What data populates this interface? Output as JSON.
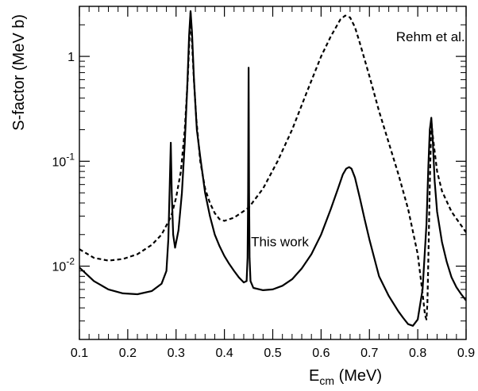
{
  "chart_data": {
    "type": "line",
    "xlabel": "E",
    "xlabel_sub": "cm",
    "xlabel_unit": " (MeV)",
    "ylabel": "S-factor (MeV b)",
    "xlim": [
      0.1,
      0.9
    ],
    "ylim": [
      0.002,
      3.0
    ],
    "yscale": "log",
    "grid": false,
    "x_ticks": [
      {
        "value": 0.1,
        "label": "0.1"
      },
      {
        "value": 0.2,
        "label": "0.2"
      },
      {
        "value": 0.3,
        "label": "0.3"
      },
      {
        "value": 0.4,
        "label": "0.4"
      },
      {
        "value": 0.5,
        "label": "0.5"
      },
      {
        "value": 0.6,
        "label": "0.6"
      },
      {
        "value": 0.7,
        "label": "0.7"
      },
      {
        "value": 0.8,
        "label": "0.8"
      },
      {
        "value": 0.9,
        "label": "0.9"
      }
    ],
    "y_ticks": [
      {
        "value": 0.01,
        "base": "10",
        "exp": "-2"
      },
      {
        "value": 0.1,
        "base": "10",
        "exp": "-1"
      },
      {
        "value": 1,
        "base": "1",
        "exp": ""
      }
    ],
    "annotations": [
      {
        "text": "Rehm et al.",
        "x": 0.755,
        "y": 1.4
      },
      {
        "text": "This work",
        "x": 0.455,
        "y": 0.0155
      }
    ],
    "series": [
      {
        "style": "solid",
        "x": [
          0.1,
          0.13,
          0.16,
          0.19,
          0.22,
          0.25,
          0.27,
          0.28,
          0.284,
          0.287,
          0.289,
          0.291,
          0.294,
          0.298,
          0.305,
          0.312,
          0.318,
          0.323,
          0.327,
          0.33,
          0.333,
          0.337,
          0.343,
          0.35,
          0.36,
          0.37,
          0.38,
          0.39,
          0.4,
          0.41,
          0.42,
          0.43,
          0.44,
          0.446,
          0.448,
          0.449,
          0.45,
          0.451,
          0.452,
          0.454,
          0.46,
          0.48,
          0.5,
          0.52,
          0.54,
          0.56,
          0.58,
          0.6,
          0.62,
          0.635,
          0.645,
          0.652,
          0.658,
          0.663,
          0.67,
          0.68,
          0.69,
          0.7,
          0.71,
          0.72,
          0.74,
          0.76,
          0.77,
          0.78,
          0.79,
          0.8,
          0.81,
          0.818,
          0.822,
          0.825,
          0.828,
          0.831,
          0.835,
          0.84,
          0.85,
          0.86,
          0.87,
          0.88,
          0.89,
          0.9
        ],
        "y": [
          0.0097,
          0.0072,
          0.006,
          0.0055,
          0.0054,
          0.0058,
          0.0068,
          0.009,
          0.018,
          0.06,
          0.15,
          0.05,
          0.02,
          0.015,
          0.022,
          0.05,
          0.15,
          0.5,
          1.6,
          2.7,
          1.7,
          0.6,
          0.2,
          0.11,
          0.05,
          0.03,
          0.02,
          0.0155,
          0.0125,
          0.0105,
          0.009,
          0.0078,
          0.007,
          0.0072,
          0.012,
          0.05,
          0.78,
          0.05,
          0.012,
          0.0072,
          0.0062,
          0.0059,
          0.006,
          0.0065,
          0.0075,
          0.0095,
          0.013,
          0.02,
          0.035,
          0.055,
          0.075,
          0.085,
          0.088,
          0.085,
          0.07,
          0.045,
          0.028,
          0.018,
          0.012,
          0.008,
          0.0052,
          0.0037,
          0.0032,
          0.0028,
          0.0027,
          0.0031,
          0.006,
          0.025,
          0.09,
          0.2,
          0.26,
          0.16,
          0.065,
          0.033,
          0.017,
          0.011,
          0.0078,
          0.0063,
          0.0054,
          0.0047
        ]
      },
      {
        "name": "Rehm et al.",
        "style": "dashed",
        "x": [
          0.1,
          0.13,
          0.16,
          0.19,
          0.22,
          0.25,
          0.27,
          0.29,
          0.3,
          0.31,
          0.318,
          0.324,
          0.33,
          0.336,
          0.342,
          0.35,
          0.36,
          0.37,
          0.38,
          0.39,
          0.4,
          0.42,
          0.45,
          0.48,
          0.51,
          0.54,
          0.57,
          0.6,
          0.62,
          0.64,
          0.65,
          0.66,
          0.67,
          0.68,
          0.7,
          0.72,
          0.74,
          0.76,
          0.78,
          0.8,
          0.81,
          0.815,
          0.818,
          0.82,
          0.822,
          0.825,
          0.828,
          0.832,
          0.84,
          0.85,
          0.87,
          0.9
        ],
        "y": [
          0.0145,
          0.012,
          0.0113,
          0.0117,
          0.013,
          0.016,
          0.02,
          0.03,
          0.045,
          0.08,
          0.2,
          0.6,
          2.6,
          0.7,
          0.25,
          0.1,
          0.055,
          0.04,
          0.032,
          0.028,
          0.027,
          0.029,
          0.036,
          0.055,
          0.1,
          0.2,
          0.45,
          1.0,
          1.55,
          2.25,
          2.45,
          2.35,
          1.9,
          1.35,
          0.65,
          0.3,
          0.15,
          0.075,
          0.035,
          0.013,
          0.0055,
          0.0034,
          0.0031,
          0.0045,
          0.012,
          0.06,
          0.24,
          0.16,
          0.08,
          0.052,
          0.033,
          0.021
        ]
      }
    ]
  }
}
